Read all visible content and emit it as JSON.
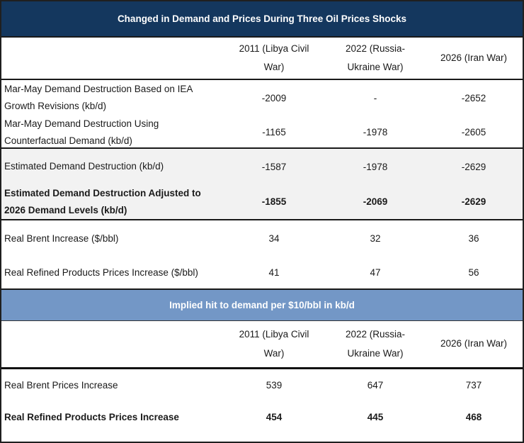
{
  "colors": {
    "title_bar_navy": "#14375E",
    "subtitle_bar_blue": "#7397C6",
    "shaded_row_gray": "#F2F2F2",
    "border_dark": "#1F1F1F",
    "title_text": "#FFFFFF",
    "body_text": "#1A1A1A"
  },
  "chart_data": [
    {
      "type": "table",
      "title": "Changed in Demand and Prices During Three Oil Prices Shocks",
      "columns": [
        "2011 (Libya Civil War)",
        "2022 (Russia-Ukraine War)",
        "2026 (Iran War)"
      ],
      "rows": [
        {
          "label": "Mar-May Demand Destruction Based on IEA Growth Revisions (kb/d)",
          "values": [
            "-2009",
            "-",
            "-2652"
          ],
          "bold": false,
          "shaded": false
        },
        {
          "label": "Mar-May Demand Destruction Using Counterfactual Demand (kb/d)",
          "values": [
            "-1165",
            "-1978",
            "-2605"
          ],
          "bold": false,
          "shaded": false
        },
        {
          "label": "Estimated Demand Destruction (kb/d)",
          "values": [
            "-1587",
            "-1978",
            "-2629"
          ],
          "bold": false,
          "shaded": true
        },
        {
          "label": "Estimated Demand Destruction Adjusted to 2026 Demand Levels (kb/d)",
          "values": [
            "-1855",
            "-2069",
            "-2629"
          ],
          "bold": true,
          "shaded": true
        },
        {
          "label": "Real Brent Increase ($/bbl)",
          "values": [
            "34",
            "32",
            "36"
          ],
          "bold": false,
          "shaded": false
        },
        {
          "label": "Real Refined Products Prices Increase ($/bbl)",
          "values": [
            "41",
            "47",
            "56"
          ],
          "bold": false,
          "shaded": false
        }
      ]
    },
    {
      "type": "table",
      "title": "Implied hit to demand per $10/bbl in kb/d",
      "columns": [
        "2011 (Libya Civil War)",
        "2022 (Russia-Ukraine War)",
        "2026 (Iran War)"
      ],
      "rows": [
        {
          "label": "Real Brent Prices Increase",
          "values": [
            "539",
            "647",
            "737"
          ],
          "bold": false,
          "shaded": false
        },
        {
          "label": "Real Refined Products Prices Increase",
          "values": [
            "454",
            "445",
            "468"
          ],
          "bold": true,
          "shaded": false
        }
      ]
    }
  ]
}
